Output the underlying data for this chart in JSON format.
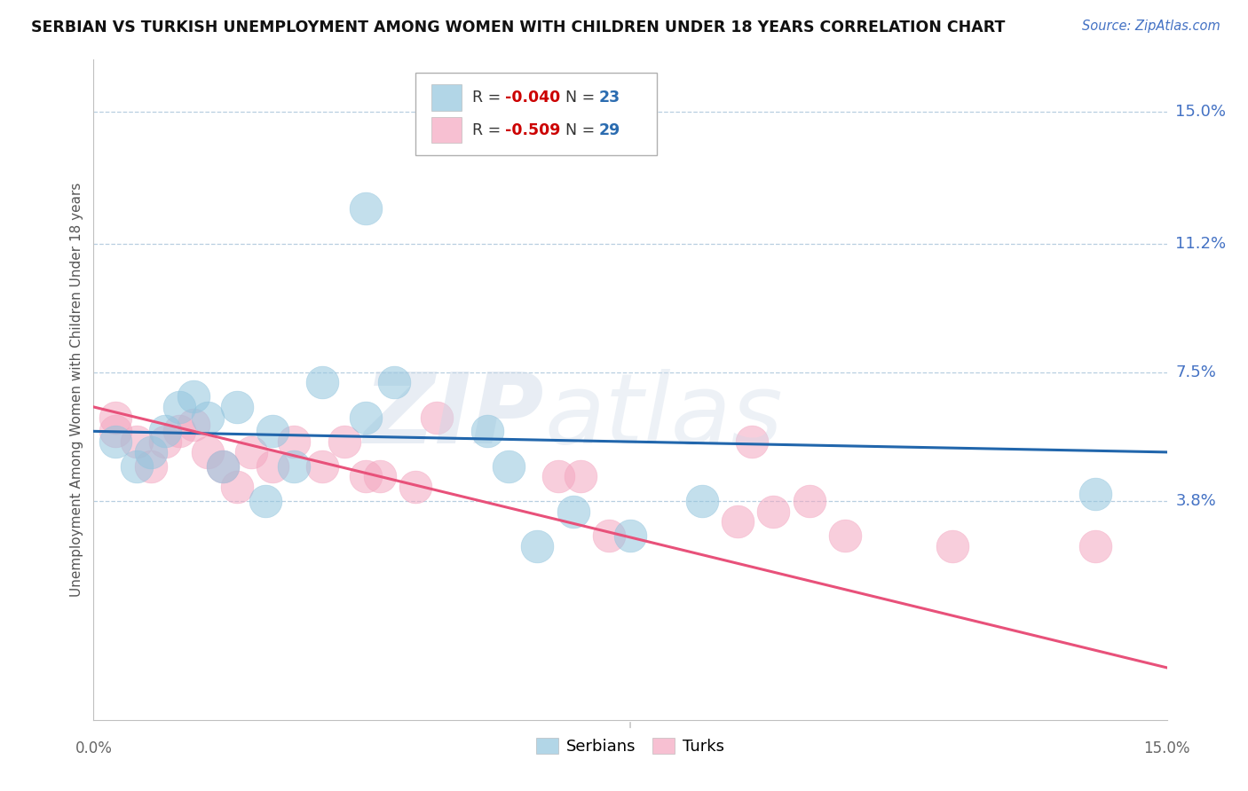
{
  "title": "SERBIAN VS TURKISH UNEMPLOYMENT AMONG WOMEN WITH CHILDREN UNDER 18 YEARS CORRELATION CHART",
  "source": "Source: ZipAtlas.com",
  "ylabel": "Unemployment Among Women with Children Under 18 years",
  "ytick_labels": [
    "15.0%",
    "11.2%",
    "7.5%",
    "3.8%"
  ],
  "ytick_values": [
    0.15,
    0.112,
    0.075,
    0.038
  ],
  "xmin": 0.0,
  "xmax": 0.15,
  "ymin": -0.025,
  "ymax": 0.165,
  "serbian_color": "#92c5de",
  "turkish_color": "#f4a6c0",
  "serbian_line_color": "#2166ac",
  "turkish_line_color": "#e8517a",
  "watermark_zip": "#c8d8eb",
  "watermark_atlas": "#c8d8eb",
  "serbian_points_x": [
    0.003,
    0.006,
    0.008,
    0.01,
    0.012,
    0.014,
    0.016,
    0.018,
    0.02,
    0.025,
    0.028,
    0.032,
    0.038,
    0.042,
    0.055,
    0.058,
    0.062,
    0.067,
    0.075,
    0.085,
    0.024,
    0.14,
    0.038
  ],
  "serbian_points_y": [
    0.055,
    0.048,
    0.052,
    0.058,
    0.065,
    0.068,
    0.062,
    0.048,
    0.065,
    0.058,
    0.048,
    0.072,
    0.062,
    0.072,
    0.058,
    0.048,
    0.025,
    0.035,
    0.028,
    0.038,
    0.038,
    0.04,
    0.122
  ],
  "turkish_points_x": [
    0.003,
    0.006,
    0.008,
    0.01,
    0.012,
    0.014,
    0.016,
    0.018,
    0.02,
    0.022,
    0.025,
    0.028,
    0.032,
    0.035,
    0.038,
    0.04,
    0.045,
    0.048,
    0.065,
    0.068,
    0.072,
    0.09,
    0.092,
    0.095,
    0.1,
    0.105,
    0.12,
    0.14,
    0.003
  ],
  "turkish_points_y": [
    0.058,
    0.055,
    0.048,
    0.055,
    0.058,
    0.06,
    0.052,
    0.048,
    0.042,
    0.052,
    0.048,
    0.055,
    0.048,
    0.055,
    0.045,
    0.045,
    0.042,
    0.062,
    0.045,
    0.045,
    0.028,
    0.032,
    0.055,
    0.035,
    0.038,
    0.028,
    0.025,
    0.025,
    0.062
  ],
  "serbian_line_y0": 0.058,
  "serbian_line_y1": 0.052,
  "turkish_line_y0": 0.065,
  "turkish_line_y1": -0.01
}
